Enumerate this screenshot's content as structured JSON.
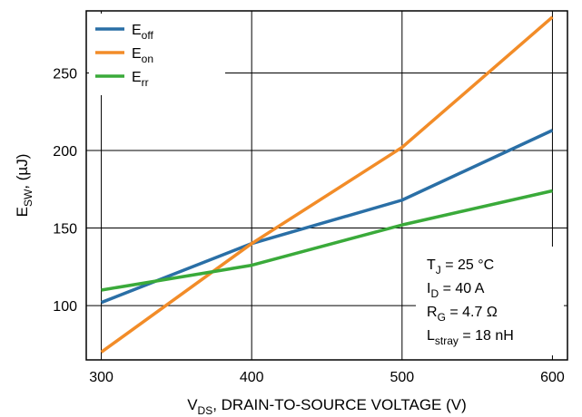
{
  "chart_data": {
    "type": "line",
    "x": [
      300,
      400,
      500,
      600
    ],
    "xlim": [
      290,
      610
    ],
    "ylim": [
      65,
      290
    ],
    "xticks": [
      300,
      400,
      500,
      600
    ],
    "yticks": [
      100,
      150,
      200,
      250
    ],
    "grid": true,
    "legend_position": "top-left",
    "xlabel": {
      "main": "V",
      "sub": "DS",
      "rest": ", DRAIN-TO-SOURCE VOLTAGE (V)"
    },
    "ylabel": {
      "main": "E",
      "sub": "SW",
      "rest": ", (µJ)"
    },
    "series": [
      {
        "main": "E",
        "sub": "off",
        "color": "#2a6fa6",
        "values": [
          102,
          140,
          168,
          213
        ]
      },
      {
        "main": "E",
        "sub": "on",
        "color": "#f28c28",
        "values": [
          70,
          140,
          202,
          286
        ]
      },
      {
        "main": "E",
        "sub": "rr",
        "color": "#3aaa3a",
        "values": [
          110,
          126,
          152,
          174
        ]
      }
    ],
    "annotations": [
      {
        "main": "T",
        "sub": "J",
        "rest": " = 25 °C"
      },
      {
        "main": "I",
        "sub": "D",
        "rest": " = 40 A"
      },
      {
        "main": "R",
        "sub": "G",
        "rest": " = 4.7 Ω"
      },
      {
        "main": "L",
        "sub": "stray",
        "rest": " = 18 nH"
      }
    ]
  }
}
